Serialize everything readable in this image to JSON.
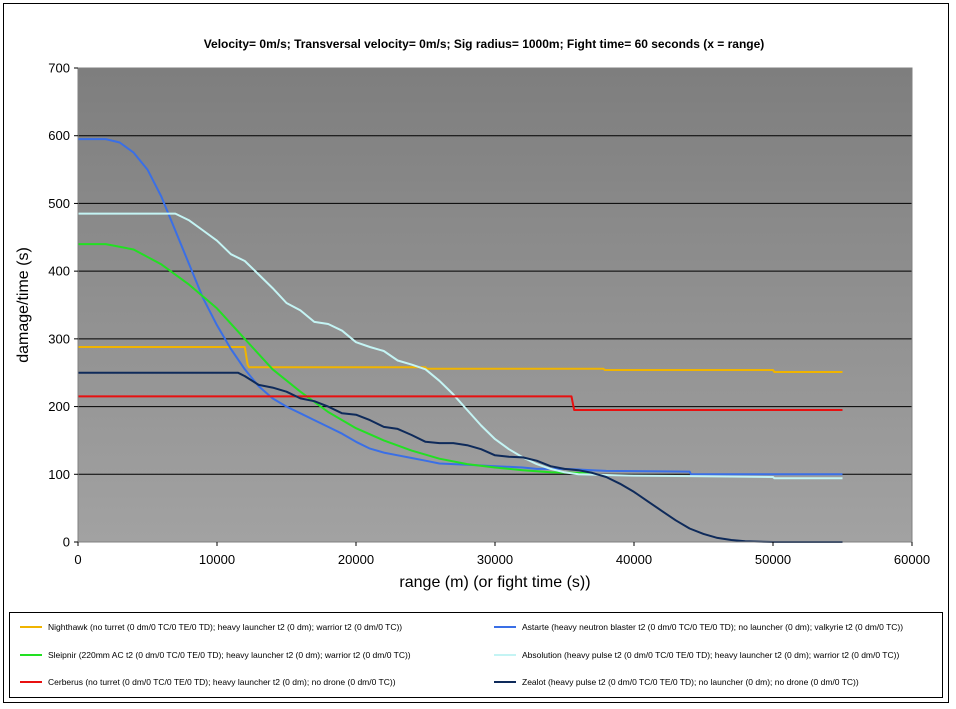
{
  "chart_data": {
    "type": "line",
    "title": "Velocity= 0m/s; Transversal velocity= 0m/s; Sig radius= 1000m; Fight time= 60 seconds (x = range)",
    "xlabel": "range (m) (or fight time (s))",
    "ylabel": "damage/time (s)",
    "xlim": [
      0,
      60000
    ],
    "ylim": [
      0,
      700
    ],
    "x_ticks": [
      0,
      10000,
      20000,
      30000,
      40000,
      50000,
      60000
    ],
    "y_ticks": [
      0,
      100,
      200,
      300,
      400,
      500,
      600,
      700
    ],
    "grid": true,
    "plot_bg_top": "#7e7e7e",
    "plot_bg_bottom": "#a2a2a2",
    "series": [
      {
        "name": "Nighthawk (no turret (0 dm/0 TC/0 TE/0 TD); heavy launcher t2 (0 dm); warrior t2 (0 dm/0 TC))",
        "color": "#f0b400",
        "points": [
          [
            0,
            288
          ],
          [
            12000,
            288
          ],
          [
            12100,
            275
          ],
          [
            12200,
            262
          ],
          [
            12300,
            258
          ],
          [
            25000,
            258
          ],
          [
            25100,
            256
          ],
          [
            37800,
            256
          ],
          [
            37900,
            254
          ],
          [
            50000,
            254
          ],
          [
            50100,
            251
          ],
          [
            55000,
            251
          ]
        ]
      },
      {
        "name": "Astarte (heavy neutron blaster t2 (0 dm/0 TC/0 TE/0 TD); no launcher (0 dm); valkyrie t2 (0 dm/0 TC))",
        "color": "#3a6fe6",
        "points": [
          [
            0,
            595
          ],
          [
            2000,
            595
          ],
          [
            3000,
            590
          ],
          [
            4000,
            575
          ],
          [
            5000,
            550
          ],
          [
            6000,
            510
          ],
          [
            7000,
            460
          ],
          [
            8000,
            410
          ],
          [
            9000,
            360
          ],
          [
            10000,
            320
          ],
          [
            11000,
            285
          ],
          [
            12000,
            255
          ],
          [
            13000,
            230
          ],
          [
            14000,
            212
          ],
          [
            15000,
            200
          ],
          [
            16000,
            190
          ],
          [
            17000,
            180
          ],
          [
            18000,
            170
          ],
          [
            19000,
            160
          ],
          [
            20000,
            148
          ],
          [
            21000,
            138
          ],
          [
            22000,
            132
          ],
          [
            23000,
            128
          ],
          [
            24000,
            124
          ],
          [
            25000,
            120
          ],
          [
            26000,
            116
          ],
          [
            28000,
            114
          ],
          [
            30000,
            112
          ],
          [
            32000,
            110
          ],
          [
            33000,
            108
          ],
          [
            35000,
            108
          ],
          [
            36000,
            107
          ],
          [
            37000,
            106
          ],
          [
            38000,
            105
          ],
          [
            44000,
            104
          ],
          [
            44100,
            100
          ],
          [
            55000,
            100
          ]
        ]
      },
      {
        "name": "Sleipnir (220mm AC t2 (0 dm/0 TC/0 TE/0 TD); heavy launcher t2 (0 dm); warrior t2 (0 dm/0 TC))",
        "color": "#22e022",
        "points": [
          [
            0,
            440
          ],
          [
            2000,
            440
          ],
          [
            4000,
            432
          ],
          [
            6000,
            410
          ],
          [
            8000,
            380
          ],
          [
            10000,
            345
          ],
          [
            12000,
            300
          ],
          [
            14000,
            255
          ],
          [
            16000,
            222
          ],
          [
            18000,
            192
          ],
          [
            20000,
            168
          ],
          [
            22000,
            150
          ],
          [
            24000,
            135
          ],
          [
            26000,
            123
          ],
          [
            28000,
            115
          ],
          [
            30000,
            110
          ],
          [
            32000,
            106
          ],
          [
            34000,
            103
          ],
          [
            36000,
            102
          ],
          [
            37000,
            102
          ]
        ]
      },
      {
        "name": "Absolution (heavy pulse t2 (0 dm/0 TC/0 TE/0 TD); heavy launcher t2 (0 dm); warrior t2 (0 dm/0 TC))",
        "color": "#c4f4f4",
        "points": [
          [
            0,
            485
          ],
          [
            7000,
            485
          ],
          [
            8000,
            475
          ],
          [
            9000,
            460
          ],
          [
            10000,
            445
          ],
          [
            11000,
            425
          ],
          [
            12000,
            415
          ],
          [
            13000,
            395
          ],
          [
            14000,
            375
          ],
          [
            15000,
            353
          ],
          [
            16000,
            342
          ],
          [
            17000,
            325
          ],
          [
            18000,
            322
          ],
          [
            19000,
            312
          ],
          [
            20000,
            295
          ],
          [
            21000,
            288
          ],
          [
            22000,
            282
          ],
          [
            23000,
            268
          ],
          [
            24000,
            262
          ],
          [
            25000,
            255
          ],
          [
            26000,
            238
          ],
          [
            27000,
            218
          ],
          [
            28000,
            195
          ],
          [
            29000,
            172
          ],
          [
            30000,
            152
          ],
          [
            31000,
            137
          ],
          [
            32000,
            125
          ],
          [
            33000,
            115
          ],
          [
            34000,
            108
          ],
          [
            35000,
            103
          ],
          [
            36000,
            100
          ],
          [
            38000,
            99
          ],
          [
            40000,
            98
          ],
          [
            45000,
            97
          ],
          [
            50000,
            96
          ],
          [
            50100,
            94
          ],
          [
            55000,
            94
          ]
        ]
      },
      {
        "name": "Cerberus (no turret (0 dm/0 TC/0 TE/0 TD); heavy launcher t2 (0 dm); no drone (0 dm/0 TC))",
        "color": "#e81010",
        "points": [
          [
            0,
            215
          ],
          [
            35500,
            215
          ],
          [
            35600,
            205
          ],
          [
            35700,
            195
          ],
          [
            55000,
            195
          ]
        ]
      },
      {
        "name": "Zealot (heavy pulse t2 (0 dm/0 TC/0 TE/0 TD); no launcher (0 dm); no drone (0 dm/0 TC))",
        "color": "#0e2a5a",
        "points": [
          [
            0,
            250
          ],
          [
            11500,
            250
          ],
          [
            12000,
            245
          ],
          [
            13000,
            232
          ],
          [
            14000,
            228
          ],
          [
            15000,
            222
          ],
          [
            16000,
            212
          ],
          [
            17000,
            208
          ],
          [
            18000,
            200
          ],
          [
            19000,
            190
          ],
          [
            20000,
            188
          ],
          [
            21000,
            180
          ],
          [
            22000,
            170
          ],
          [
            23000,
            167
          ],
          [
            24000,
            158
          ],
          [
            25000,
            148
          ],
          [
            26000,
            146
          ],
          [
            27000,
            146
          ],
          [
            28000,
            143
          ],
          [
            29000,
            137
          ],
          [
            30000,
            128
          ],
          [
            31000,
            126
          ],
          [
            32000,
            125
          ],
          [
            33000,
            120
          ],
          [
            34000,
            112
          ],
          [
            35000,
            108
          ],
          [
            36000,
            106
          ],
          [
            37000,
            102
          ],
          [
            38000,
            96
          ],
          [
            39000,
            86
          ],
          [
            40000,
            74
          ],
          [
            41000,
            60
          ],
          [
            42000,
            46
          ],
          [
            43000,
            32
          ],
          [
            44000,
            20
          ],
          [
            45000,
            12
          ],
          [
            46000,
            6
          ],
          [
            47000,
            3
          ],
          [
            48000,
            1
          ],
          [
            50000,
            0
          ],
          [
            55000,
            0
          ]
        ]
      }
    ]
  },
  "legend": {
    "items": [
      {
        "label": "Nighthawk (no turret (0 dm/0 TC/0 TE/0 TD); heavy launcher t2 (0 dm); warrior t2 (0 dm/0 TC))",
        "color": "#f0b400"
      },
      {
        "label": "Astarte (heavy neutron blaster t2 (0 dm/0 TC/0 TE/0 TD); no launcher (0 dm); valkyrie t2 (0 dm/0 TC))",
        "color": "#3a6fe6"
      },
      {
        "label": "Sleipnir (220mm AC t2 (0 dm/0 TC/0 TE/0 TD); heavy launcher t2 (0 dm); warrior t2 (0 dm/0 TC))",
        "color": "#22e022"
      },
      {
        "label": "Absolution (heavy pulse t2 (0 dm/0 TC/0 TE/0 TD); heavy launcher t2 (0 dm); warrior t2 (0 dm/0 TC))",
        "color": "#c4f4f4"
      },
      {
        "label": "Cerberus (no turret (0 dm/0 TC/0 TE/0 TD); heavy launcher t2 (0 dm); no drone (0 dm/0 TC))",
        "color": "#e81010"
      },
      {
        "label": "Zealot (heavy pulse t2 (0 dm/0 TC/0 TE/0 TD); no launcher (0 dm); no drone (0 dm/0 TC))",
        "color": "#0e2a5a"
      }
    ]
  }
}
